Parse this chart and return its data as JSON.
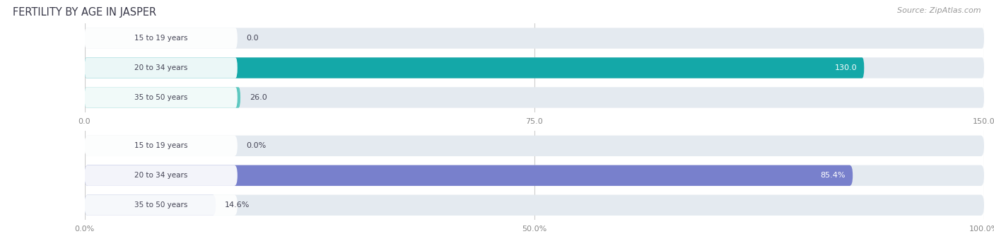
{
  "title": "FERTILITY BY AGE IN JASPER",
  "source": "Source: ZipAtlas.com",
  "top_chart": {
    "categories": [
      "15 to 19 years",
      "20 to 34 years",
      "35 to 50 years"
    ],
    "values": [
      0.0,
      130.0,
      26.0
    ],
    "xlim": [
      0,
      150
    ],
    "xticks": [
      0.0,
      75.0,
      150.0
    ],
    "xtick_labels": [
      "0.0",
      "75.0",
      "150.0"
    ],
    "bar_colors": [
      "#6dcece",
      "#14a8a8",
      "#5ec8c0"
    ],
    "bar_track_color": "#e4eaf0",
    "value_label_colors": [
      "#555555",
      "#ffffff",
      "#555555"
    ],
    "value_labels": [
      "0.0",
      "130.0",
      "26.0"
    ]
  },
  "bottom_chart": {
    "categories": [
      "15 to 19 years",
      "20 to 34 years",
      "35 to 50 years"
    ],
    "values": [
      0.0,
      85.4,
      14.6
    ],
    "xlim": [
      0,
      100
    ],
    "xticks": [
      0.0,
      50.0,
      100.0
    ],
    "xtick_labels": [
      "0.0%",
      "50.0%",
      "100.0%"
    ],
    "bar_colors": [
      "#b0b8e0",
      "#7880cc",
      "#9daad8"
    ],
    "bar_track_color": "#e4eaf0",
    "value_label_colors": [
      "#555555",
      "#ffffff",
      "#555555"
    ],
    "value_labels": [
      "0.0%",
      "85.4%",
      "14.6%"
    ]
  },
  "title_color": "#3a3a4a",
  "source_color": "#999999",
  "label_text_color": "#444455",
  "background_color": "#ffffff",
  "grid_color": "#cccccc"
}
